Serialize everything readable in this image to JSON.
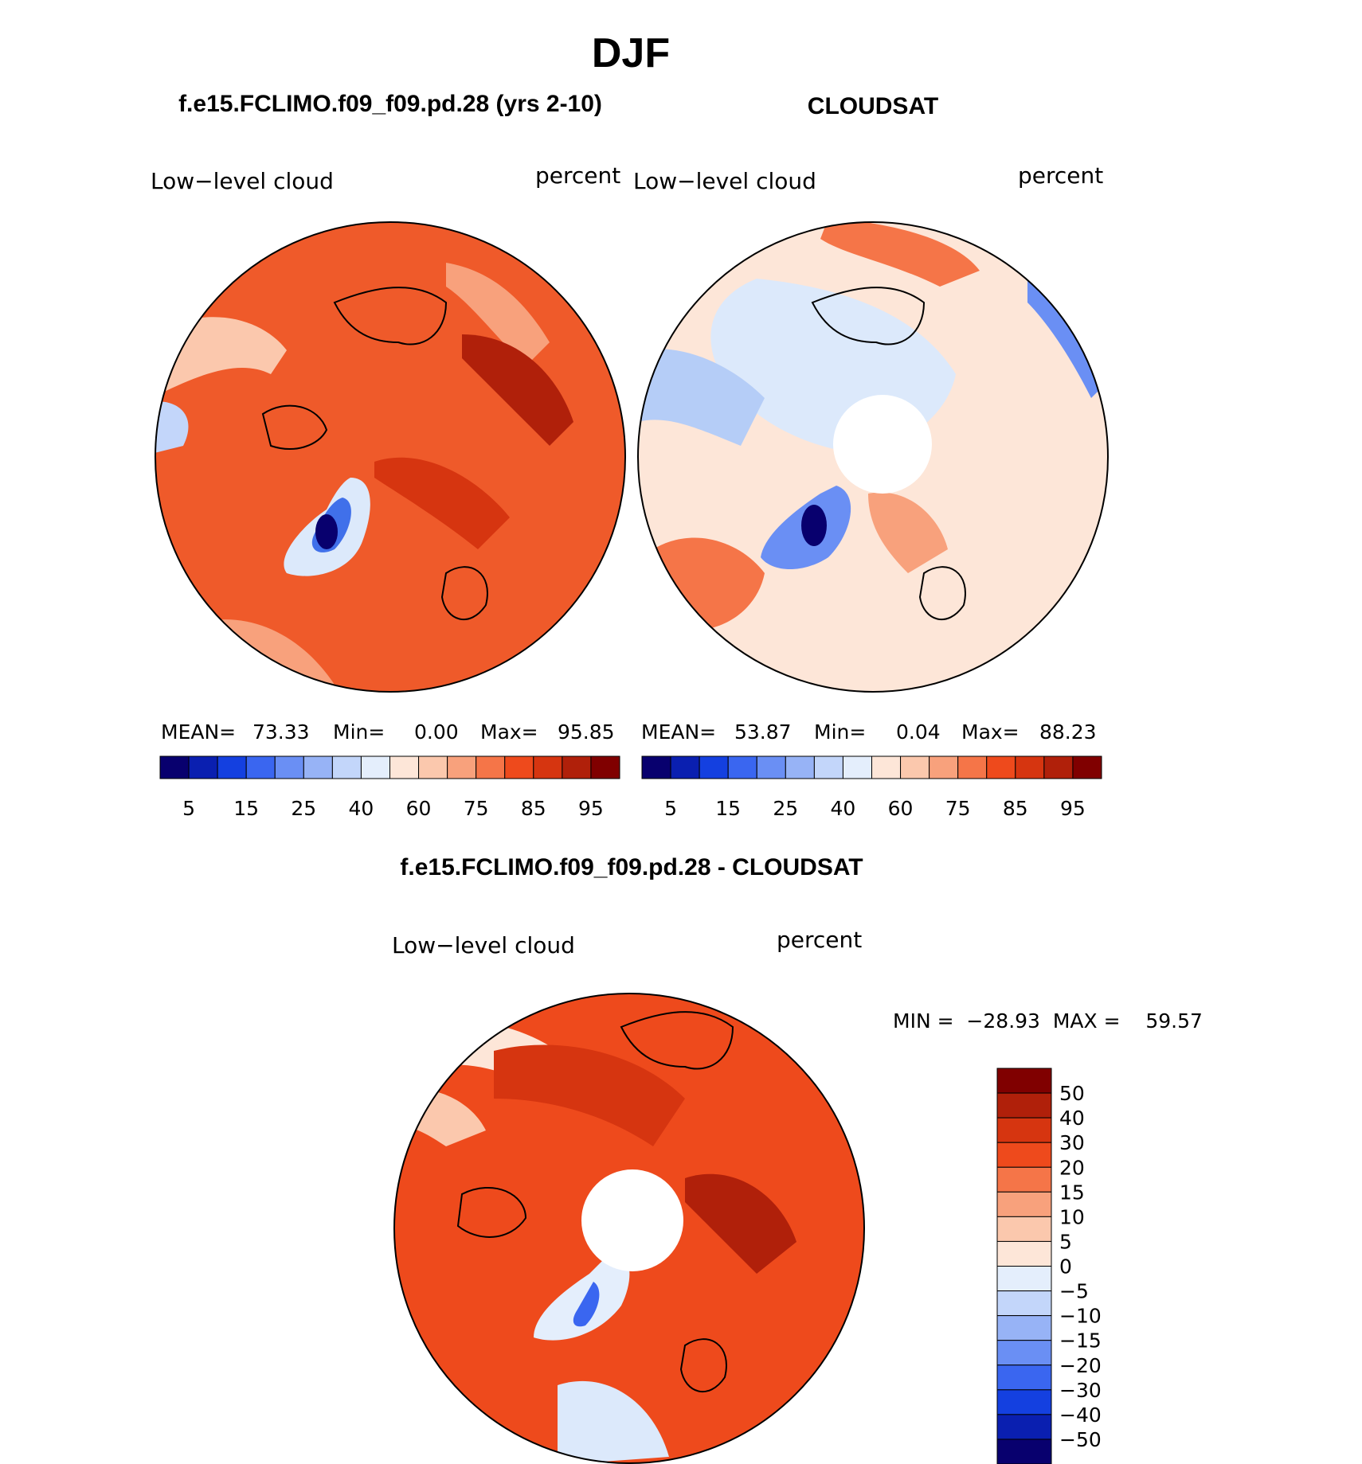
{
  "page": {
    "season": "DJF",
    "left_title": "f.e15.FCLIMO.f09_f09.pd.28 (yrs 2-10)",
    "right_title": "CLOUDSAT",
    "diff_title": "f.e15.FCLIMO.f09_f09.pd.28 - CLOUDSAT"
  },
  "panels": {
    "model": {
      "var_label": "Low−level cloud",
      "units": "percent",
      "mean_label": "MEAN=",
      "mean": "73.33",
      "min_label": "Min=",
      "min": "0.00",
      "max_label": "Max=",
      "max": "95.85"
    },
    "obs": {
      "var_label": "Low−level cloud",
      "units": "percent",
      "mean_label": "MEAN=",
      "mean": "53.87",
      "min_label": "Min=",
      "min": "0.04",
      "max_label": "Max=",
      "max": "88.23"
    },
    "diff": {
      "var_label": "Low−level cloud",
      "units": "percent",
      "minmax": "MIN =  −28.93  MAX =    59.57"
    }
  },
  "colorbar_abs": {
    "colors": [
      "#08006e",
      "#0a1fb0",
      "#1440e0",
      "#3a66f0",
      "#6a8ff4",
      "#97b3f6",
      "#c3d6fa",
      "#e4eefc",
      "#fde6d8",
      "#fbc8ad",
      "#f8a17c",
      "#f57548",
      "#ee4a1c",
      "#d63510",
      "#b0200a",
      "#800000"
    ],
    "tick_labels": [
      "5",
      "15",
      "25",
      "40",
      "60",
      "75",
      "85",
      "95"
    ]
  },
  "colorbar_diff": {
    "colors": [
      "#800000",
      "#b0200a",
      "#d63510",
      "#ee4a1c",
      "#f57548",
      "#f8a17c",
      "#fbc8ad",
      "#fde6d8",
      "#e4eefc",
      "#c3d6fa",
      "#97b3f6",
      "#6a8ff4",
      "#3a66f0",
      "#1440e0",
      "#0a1fb0",
      "#08006e"
    ],
    "tick_labels": [
      "50",
      "40",
      "30",
      "20",
      "15",
      "10",
      "5",
      "0",
      "−5",
      "−10",
      "−15",
      "−20",
      "−30",
      "−40",
      "−50"
    ]
  },
  "map_colors": {
    "dark_red": "#b3210b",
    "red": "#e2411a",
    "orange_red": "#f06a3c",
    "salmon": "#f8a07c",
    "light_salmon": "#fbc8ad",
    "peach": "#fde6d8",
    "pale_blue": "#dce9fb",
    "light_blue": "#b5cdf7",
    "blue": "#4070ea",
    "navy": "#08006e"
  }
}
